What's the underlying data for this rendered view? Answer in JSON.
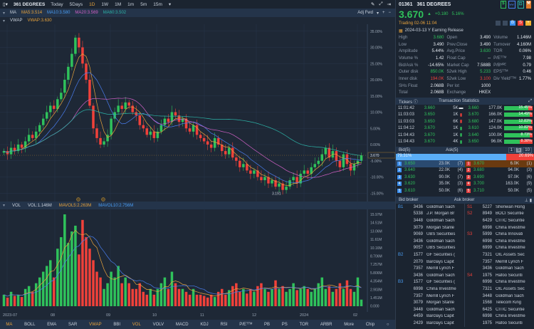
{
  "toolbar": {
    "title": "361 DEGREES",
    "timeframes": [
      "Today",
      "5Days",
      "1D",
      "1W",
      "1M",
      "1m",
      "5m",
      "15m"
    ],
    "active": "1D",
    "adjust": "Adj Fwd"
  },
  "ma": {
    "label": "MA",
    "ma5": "MA5:3.514",
    "ma10": "MA10:3.580",
    "ma20": "MA20:3.569",
    "ma60": "MA60:3.502"
  },
  "vwap": {
    "label": "VWAP",
    "value": "VWAP:3.630"
  },
  "vol": {
    "label": "VOL",
    "value": "VOL:1.146M",
    "mavol5": "MAVOL5:2.263M",
    "mavol10": "MAVOL10:2.756M"
  },
  "colors": {
    "up": "#2fc25b",
    "down": "#f0413a",
    "ma5": "#e8a33c",
    "ma10": "#4a7ef0",
    "ma20": "#d061c6",
    "ma60": "#2db4a8",
    "bg": "#1e2836"
  },
  "chart_data": {
    "type": "candlestick",
    "price_axis_ticks": [
      "35.00%",
      "30.00%",
      "25.00%",
      "20.00%",
      "15.00%",
      "10.00%",
      "5.00%",
      "0.00%",
      "-5.00%",
      "-10.00%",
      "-15.00%"
    ],
    "ylim_pct": [
      -15,
      35
    ],
    "last_price": "3.670",
    "low_label": "3.191",
    "x_ticks": [
      "2023-07",
      "08",
      "09",
      "10",
      "11",
      "12",
      "2024",
      "02"
    ],
    "close_pct": [
      -2,
      -3,
      -1,
      -2,
      0,
      -1,
      1,
      3,
      2,
      4,
      6,
      8,
      10,
      12,
      11,
      14,
      16,
      20,
      24,
      28,
      33,
      30,
      25,
      20,
      12,
      5,
      2,
      0,
      1,
      3,
      8,
      10,
      12,
      11,
      13,
      12,
      10,
      9,
      6,
      5,
      3,
      4,
      2,
      4,
      6,
      8,
      7,
      10,
      9,
      7,
      8,
      5,
      4,
      6,
      3,
      2,
      1,
      0,
      -1,
      2,
      0,
      -2,
      -3,
      -1,
      -4,
      -5,
      -7,
      -6,
      -8,
      -9,
      -8,
      -10,
      -11,
      -10,
      -12,
      -11,
      -13,
      -12,
      -14,
      -13,
      -11,
      -10,
      -12,
      -9,
      -8,
      -9,
      -7,
      -6,
      -5,
      -3,
      -1,
      -4,
      -2,
      -5,
      -7,
      -3,
      -6,
      -8,
      -6,
      -5,
      -3.3
    ],
    "volume_axis_ticks": [
      "15.97M",
      "14.51M",
      "13.06M",
      "11.61M",
      "10.16M",
      "8.706M",
      "7.257M",
      "5.806M",
      "4.354M",
      "2.903M",
      "1.451M",
      "0.000"
    ],
    "volume_max_m": 15.97,
    "volume_m": [
      2,
      1.5,
      2.5,
      1.8,
      2,
      1.6,
      3,
      3.5,
      2.5,
      4,
      5,
      6,
      7,
      8,
      5,
      10,
      12,
      15.97,
      11,
      13,
      14,
      9,
      15,
      12,
      10,
      8,
      6,
      5,
      3,
      4,
      6,
      5,
      7,
      4,
      5,
      4,
      3,
      3,
      4,
      2.5,
      2,
      3,
      2,
      3,
      4,
      5,
      3,
      6,
      4,
      3,
      3,
      2.5,
      2,
      3,
      2,
      2,
      1.8,
      1.5,
      2,
      1.6,
      2.5,
      3,
      2,
      2.8,
      3.5,
      4,
      2.5,
      3,
      2.2,
      3,
      2.5,
      3.5,
      4,
      3,
      2.5,
      3,
      4.5,
      3,
      3.5,
      2.5,
      3,
      4,
      2.8,
      3,
      3.5,
      3,
      2.5,
      3,
      4,
      5,
      3,
      3.5,
      2.5,
      3,
      4,
      3,
      4.5,
      3,
      2.5,
      5,
      1.146
    ]
  },
  "quote": {
    "code": "01361",
    "name": "361 DEGREES",
    "price": "3.670",
    "change": "+0.180",
    "change_pct": "5.16%",
    "trading": "Trading 02-06 11:04",
    "event": "2024-03-13 Y Earning Release",
    "stats": [
      [
        "High",
        "3.680",
        "Open",
        "3.490",
        "Volume",
        "1.146M"
      ],
      [
        "Low",
        "3.490",
        "Prev.Close",
        "3.490",
        "Turnover",
        "4.160M"
      ],
      [
        "Amplitude",
        "5.44%",
        "Avg.Price",
        "3.630",
        "TOR",
        "0.06%"
      ],
      [
        "Volume %",
        "1.42",
        "Float Cap",
        "--",
        "P/Eᵀᵀᴹ",
        "7.98"
      ],
      [
        "Bid/Ask %",
        "-14.65%",
        "Market Cap",
        "7.588B",
        "P/Bᴹᴿᴱ",
        "0.79"
      ],
      [
        "Outer disk",
        "850.0K",
        "52wk High",
        "5.233",
        "EPSᵀᵀᴹ",
        "0.46"
      ],
      [
        "Inner disk",
        "194.0K",
        "52wk Low",
        "3.100",
        "Div Yieldᵀᵀᴹ",
        "1.77%"
      ],
      [
        "SHs Float",
        "2.068B",
        "Per lot",
        "1000",
        "",
        ""
      ],
      [
        "Total",
        "2.068B",
        "Exchange",
        "HKEX",
        "",
        ""
      ]
    ]
  },
  "tickers": {
    "title": "Tickers",
    "rows": [
      {
        "time": "11:01:42",
        "price": "3.660",
        "vol": "5K",
        "dir": "flat"
      },
      {
        "time": "11:03:03",
        "price": "3.650",
        "vol": "1K",
        "dir": "down"
      },
      {
        "time": "11:03:03",
        "price": "3.650",
        "vol": "6K",
        "dir": "down"
      },
      {
        "time": "11:04:12",
        "price": "3.670",
        "vol": "1K",
        "dir": "up"
      },
      {
        "time": "11:04:43",
        "price": "3.670",
        "vol": "1K",
        "dir": "up"
      },
      {
        "time": "11:04:43",
        "price": "3.670",
        "vol": "4K",
        "dir": "up"
      }
    ]
  },
  "txstats": {
    "title": "Transaction Statistics",
    "rows": [
      {
        "price": "3.660",
        "vol": "177.0K",
        "pct": "15.45%",
        "buy": 0.85
      },
      {
        "price": "3.670",
        "vol": "166.0K",
        "pct": "14.49%",
        "buy": 0.9
      },
      {
        "price": "3.680",
        "vol": "147.0K",
        "pct": "12.83%",
        "buy": 0.95
      },
      {
        "price": "3.610",
        "vol": "124.0K",
        "pct": "10.82%",
        "buy": 0.85
      },
      {
        "price": "3.640",
        "vol": "100.0K",
        "pct": "8.73%",
        "buy": 0.9
      },
      {
        "price": "3.650",
        "vol": "96.0K",
        "pct": "8.38%",
        "buy": 0.55
      }
    ]
  },
  "orderbook": {
    "bid_title": "Bid(5)",
    "ask_title": "Ask(5)",
    "levels": [
      "1",
      "5",
      "10"
    ],
    "bid_pct": "79.31%",
    "ask_pct": "20.69%",
    "bid_share": 0.7931,
    "bids": [
      [
        "1",
        "3.650",
        "23.0K",
        "(7)"
      ],
      [
        "2",
        "3.640",
        "22.0K",
        "(4)"
      ],
      [
        "3",
        "3.630",
        "90.0K",
        "(7)"
      ],
      [
        "4",
        "3.620",
        "35.0K",
        "(3)"
      ],
      [
        "5",
        "3.610",
        "50.0K",
        "(6)"
      ]
    ],
    "asks": [
      [
        "1",
        "3.670",
        "6.0K",
        "(1)"
      ],
      [
        "2",
        "3.680",
        "94.0K",
        "(3)"
      ],
      [
        "3",
        "3.690",
        "97.0K",
        "(6)"
      ],
      [
        "4",
        "3.700",
        "163.0K",
        "(9)"
      ],
      [
        "5",
        "3.710",
        "50.0K",
        "(5)"
      ]
    ]
  },
  "brokers": {
    "bid_title": "Bid broker",
    "ask_title": "Ask broker",
    "bid": [
      [
        "B1",
        "3436",
        "Goldman Sach"
      ],
      [
        "",
        "5338",
        "J.P. Morgan Br"
      ],
      [
        "",
        "3448",
        "Goldman Sach"
      ],
      [
        "",
        "3079",
        "Morgan Stanle"
      ],
      [
        "",
        "9069",
        "UBS Securities"
      ],
      [
        "",
        "3436",
        "Goldman Sach"
      ],
      [
        "",
        "9057",
        "UBS Securities"
      ],
      [
        "B2",
        "1577",
        "GF Securities ("
      ],
      [
        "",
        "2070",
        "Barclays Capit"
      ],
      [
        "",
        "7357",
        "Merrill Lynch F"
      ],
      [
        "",
        "3436",
        "Goldman Sach"
      ],
      [
        "B3",
        "1577",
        "GF Securities ("
      ],
      [
        "",
        "6998",
        "China Investme"
      ],
      [
        "",
        "7357",
        "Merrill Lynch F"
      ],
      [
        "",
        "3079",
        "Morgan Stanle"
      ],
      [
        "",
        "3448",
        "Goldman Sach"
      ],
      [
        "",
        "4459",
        "Barclays Capit"
      ],
      [
        "",
        "2429",
        "Barclays Capit"
      ]
    ],
    "ask": [
      [
        "S1",
        "5227",
        "Shenwan Hong"
      ],
      [
        "S2",
        "8949",
        "BOCI Securitie"
      ],
      [
        "",
        "6429",
        "CITIC Securitie"
      ],
      [
        "",
        "6998",
        "China Investme"
      ],
      [
        "S3",
        "5999",
        "China Innovati"
      ],
      [
        "",
        "6998",
        "China Investme"
      ],
      [
        "",
        "6999",
        "China Investme"
      ],
      [
        "",
        "7321",
        "OIL Assets Sec"
      ],
      [
        "",
        "7357",
        "Merrill Lynch F"
      ],
      [
        "",
        "3436",
        "Goldman Sach"
      ],
      [
        "S4",
        "1975",
        "Hafoo Securiti"
      ],
      [
        "",
        "6998",
        "China Investme"
      ],
      [
        "",
        "7321",
        "OIL Assets Sec"
      ],
      [
        "",
        "3448",
        "Goldman Sach"
      ],
      [
        "",
        "1568",
        "Telecom King"
      ],
      [
        "",
        "6425",
        "CITIC Securitie"
      ],
      [
        "",
        "6998",
        "China Investme"
      ],
      [
        "",
        "1975",
        "Hafoo Securiti"
      ]
    ]
  },
  "indicator_tabs": [
    "MA",
    "BOLL",
    "EMA",
    "SAR",
    "VWAP",
    "BBI",
    "VOL",
    "VOLV",
    "MACD",
    "KDJ",
    "RSI",
    "P/Eᵀᵀᴹ",
    "PB",
    "PS",
    "TOR",
    "ARBR",
    "More",
    "Chip"
  ],
  "active_tabs": [
    "MA",
    "VWAP",
    "VOL"
  ]
}
